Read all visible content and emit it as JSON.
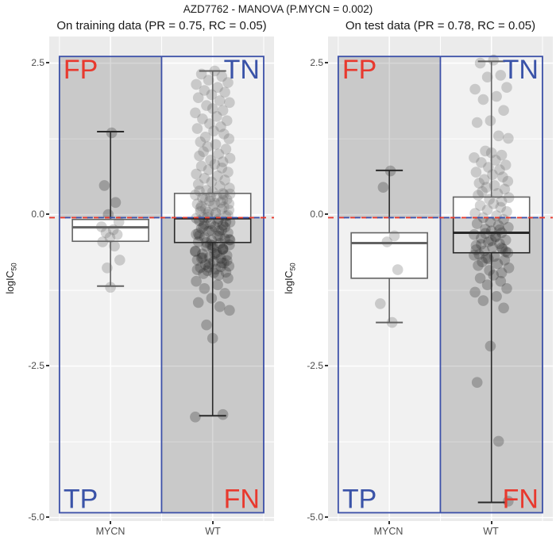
{
  "chart_data": {
    "type": "boxplot-jitter",
    "title": "AZD7762 - MANOVA (P.MYCN = 0.002)",
    "threshold": -0.05,
    "y_axis": {
      "title_main": "logIC",
      "title_sub": "50",
      "ticks": [
        2.5,
        0.0,
        -2.5,
        -5.0
      ],
      "tick_labels": [
        "2.5",
        "0.0",
        "-2.5",
        "-5.0"
      ],
      "minor": [
        1.25,
        -1.25,
        -3.75
      ],
      "range": [
        -5.06,
        2.94
      ]
    },
    "frame": {
      "x_min": 0.5,
      "x_max": 2.5,
      "y_min": -4.92,
      "y_max": 2.61,
      "divider": 1.5,
      "border_color": "#3C50A8"
    },
    "colors": {
      "panel_bg": "#EBEBEB",
      "grid": "#FFFFFF",
      "dark_quadrant": "rgba(90,90,90,0.24)",
      "light_quadrant": "rgba(255,255,255,0.32)",
      "box_stroke": "#1A1A1A",
      "point_fill": "#1A1A1A",
      "threshold_red": "#E8392E",
      "threshold_blue": "#3C50A8",
      "label_red": "#E8392E",
      "label_blue": "#3A53A8"
    },
    "quadrants": [
      {
        "text": "FP",
        "position": "top_left",
        "color": "#E8392E"
      },
      {
        "text": "TN",
        "position": "top_right",
        "color": "#3A53A8"
      },
      {
        "text": "TP",
        "position": "bottom_left",
        "color": "#3A53A8"
      },
      {
        "text": "FN",
        "position": "bottom_right",
        "color": "#E8392E"
      }
    ],
    "jitter_pattern": [
      0.02,
      -0.11,
      0.09,
      -0.04,
      0.15,
      -0.16,
      0.05,
      -0.08,
      0.12,
      -0.01,
      -0.14,
      0.07,
      0.165,
      -0.06,
      0,
      0.1,
      -0.17,
      0.04,
      -0.1,
      0.14,
      -0.03,
      0.08,
      -0.15,
      0.01,
      0.11,
      -0.07,
      0.16,
      -0.12,
      0.03,
      -0.05,
      0.13,
      -0.09,
      0.06,
      -0.13,
      0.17,
      -0.02,
      0.1
    ],
    "panels": [
      {
        "subtitle": "On training data (PR = 0.75, RC = 0.05)",
        "groups": [
          {
            "name": "MYCN",
            "pos": 1,
            "jitter_scale": 0.55,
            "box": {
              "lower_whisker": -1.18,
              "q1": -0.44,
              "median": -0.21,
              "q3": -0.08,
              "upper_whisker": 1.37
            },
            "points": [
              1.35,
              0.48,
              0.2,
              0,
              -0.12,
              -0.2,
              -0.25,
              -0.3,
              -0.33,
              -0.38,
              -0.45,
              -0.52,
              -0.75,
              -0.88,
              -1.2
            ]
          },
          {
            "name": "WT",
            "pos": 2,
            "jitter_scale": 1.0,
            "box": {
              "lower_whisker": -3.32,
              "q1": -0.46,
              "median": -0.06,
              "q3": 0.35,
              "upper_whisker": 2.37
            },
            "points": [
              2.37,
              2.32,
              2.28,
              2.22,
              2.18,
              2.15,
              2.1,
              2.05,
              2.02,
              1.98,
              1.93,
              1.88,
              1.85,
              1.8,
              1.75,
              1.72,
              1.68,
              1.62,
              1.58,
              1.55,
              1.5,
              1.45,
              1.42,
              1.38,
              1.33,
              1.28,
              1.25,
              1.2,
              1.16,
              1.12,
              1.08,
              1.04,
              1,
              0.97,
              0.93,
              0.9,
              0.87,
              0.83,
              0.8,
              0.77,
              0.74,
              0.7,
              0.67,
              0.64,
              0.6,
              0.57,
              0.54,
              0.5,
              0.47,
              0.44,
              0.4,
              0.375,
              0.35,
              0.325,
              0.3,
              0.275,
              0.25,
              0.225,
              0.2,
              0.175,
              0.15,
              0.125,
              0.1,
              0.075,
              0.05,
              0.025,
              0,
              -0.025,
              -0.05,
              -0.075,
              -0.1,
              -0.125,
              -0.15,
              -0.175,
              -0.2,
              -0.225,
              -0.25,
              -0.275,
              -0.3,
              -0.325,
              -0.35,
              -0.375,
              -0.4,
              -0.425,
              -0.45,
              -0.475,
              -0.5,
              -0.525,
              -0.55,
              -0.575,
              -0.6,
              -0.625,
              -0.65,
              -0.675,
              -0.7,
              -0.725,
              -0.75,
              -0.775,
              -0.8,
              -0.825,
              -0.85,
              -0.875,
              -0.9,
              -0.925,
              -0.95,
              -0.975,
              -1,
              0.39,
              0.34,
              0.29,
              0.24,
              0.19,
              0.14,
              0.09,
              0.04,
              -0.01,
              -0.06,
              -0.11,
              -0.16,
              -0.21,
              -0.26,
              -0.31,
              -0.36,
              -0.41,
              -0.46,
              -0.51,
              -0.56,
              -0.61,
              -0.66,
              -0.71,
              -0.76,
              -0.81,
              -0.86,
              -0.91,
              -0.96,
              0.33,
              0.255,
              0.18,
              0.105,
              0.03,
              -0.045,
              -0.12,
              -0.195,
              -0.27,
              -0.345,
              -0.42,
              -0.495,
              -0.57,
              -0.645,
              -0.72,
              -0.795,
              -0.87,
              -1.05,
              -1.1,
              -1.16,
              -1.22,
              -1.3,
              -1.38,
              -1.45,
              -1.52,
              -1.58,
              -1.82,
              -2.04,
              -3.3,
              -3.34
            ]
          }
        ]
      },
      {
        "subtitle": "On test data (PR = 0.78, RC = 0.05)",
        "groups": [
          {
            "name": "MYCN",
            "pos": 1,
            "jitter_scale": 0.55,
            "box": {
              "lower_whisker": -1.78,
              "q1": -1.05,
              "median": -0.47,
              "q3": -0.3,
              "upper_whisker": 0.73
            },
            "points": [
              0.72,
              0.45,
              -0.35,
              -0.45,
              -0.91,
              -1.47,
              -1.78
            ]
          },
          {
            "name": "WT",
            "pos": 2,
            "jitter_scale": 1.0,
            "box": {
              "lower_whisker": -4.75,
              "q1": -0.63,
              "median": -0.3,
              "q3": 0.29,
              "upper_whisker": 2.53
            },
            "points": [
              2.55,
              2.5,
              2.3,
              2.27,
              2.1,
              2.07,
              1.95,
              1.9,
              1.72,
              1.55,
              1.52,
              1.3,
              1.26,
              1.05,
              1.02,
              0.98,
              0.94,
              0.9,
              0.86,
              0.82,
              0.78,
              0.74,
              0.7,
              0.66,
              0.62,
              0.58,
              0.55,
              0.52,
              0.48,
              0.45,
              0.42,
              0.38,
              0.35,
              0.32,
              0.28,
              0.25,
              0.22,
              0.18,
              0.15,
              0.12,
              0.08,
              0.05,
              0.02,
              -0.02,
              -0.05,
              -0.08,
              -0.12,
              -0.15,
              -0.18,
              -0.21,
              -0.24,
              -0.27,
              -0.3,
              -0.33,
              -0.36,
              -0.39,
              -0.42,
              -0.45,
              -0.48,
              -0.51,
              -0.54,
              -0.57,
              -0.6,
              -0.63,
              -0.66,
              -0.69,
              -0.72,
              -0.75,
              -0.78,
              -0.81,
              -0.84,
              -0.88,
              -0.92,
              -0.96,
              -1,
              -1.05,
              -1.1,
              -1.16,
              -1.22,
              -1.28,
              -1.35,
              -1.42,
              -1.54,
              -2.17,
              -2.77,
              -3.74,
              -4.73,
              -0.31,
              -0.43,
              -0.55,
              -0.67,
              -0.37,
              -0.49,
              -0.61,
              -0.73,
              -0.25,
              -0.58
            ]
          }
        ]
      }
    ]
  }
}
